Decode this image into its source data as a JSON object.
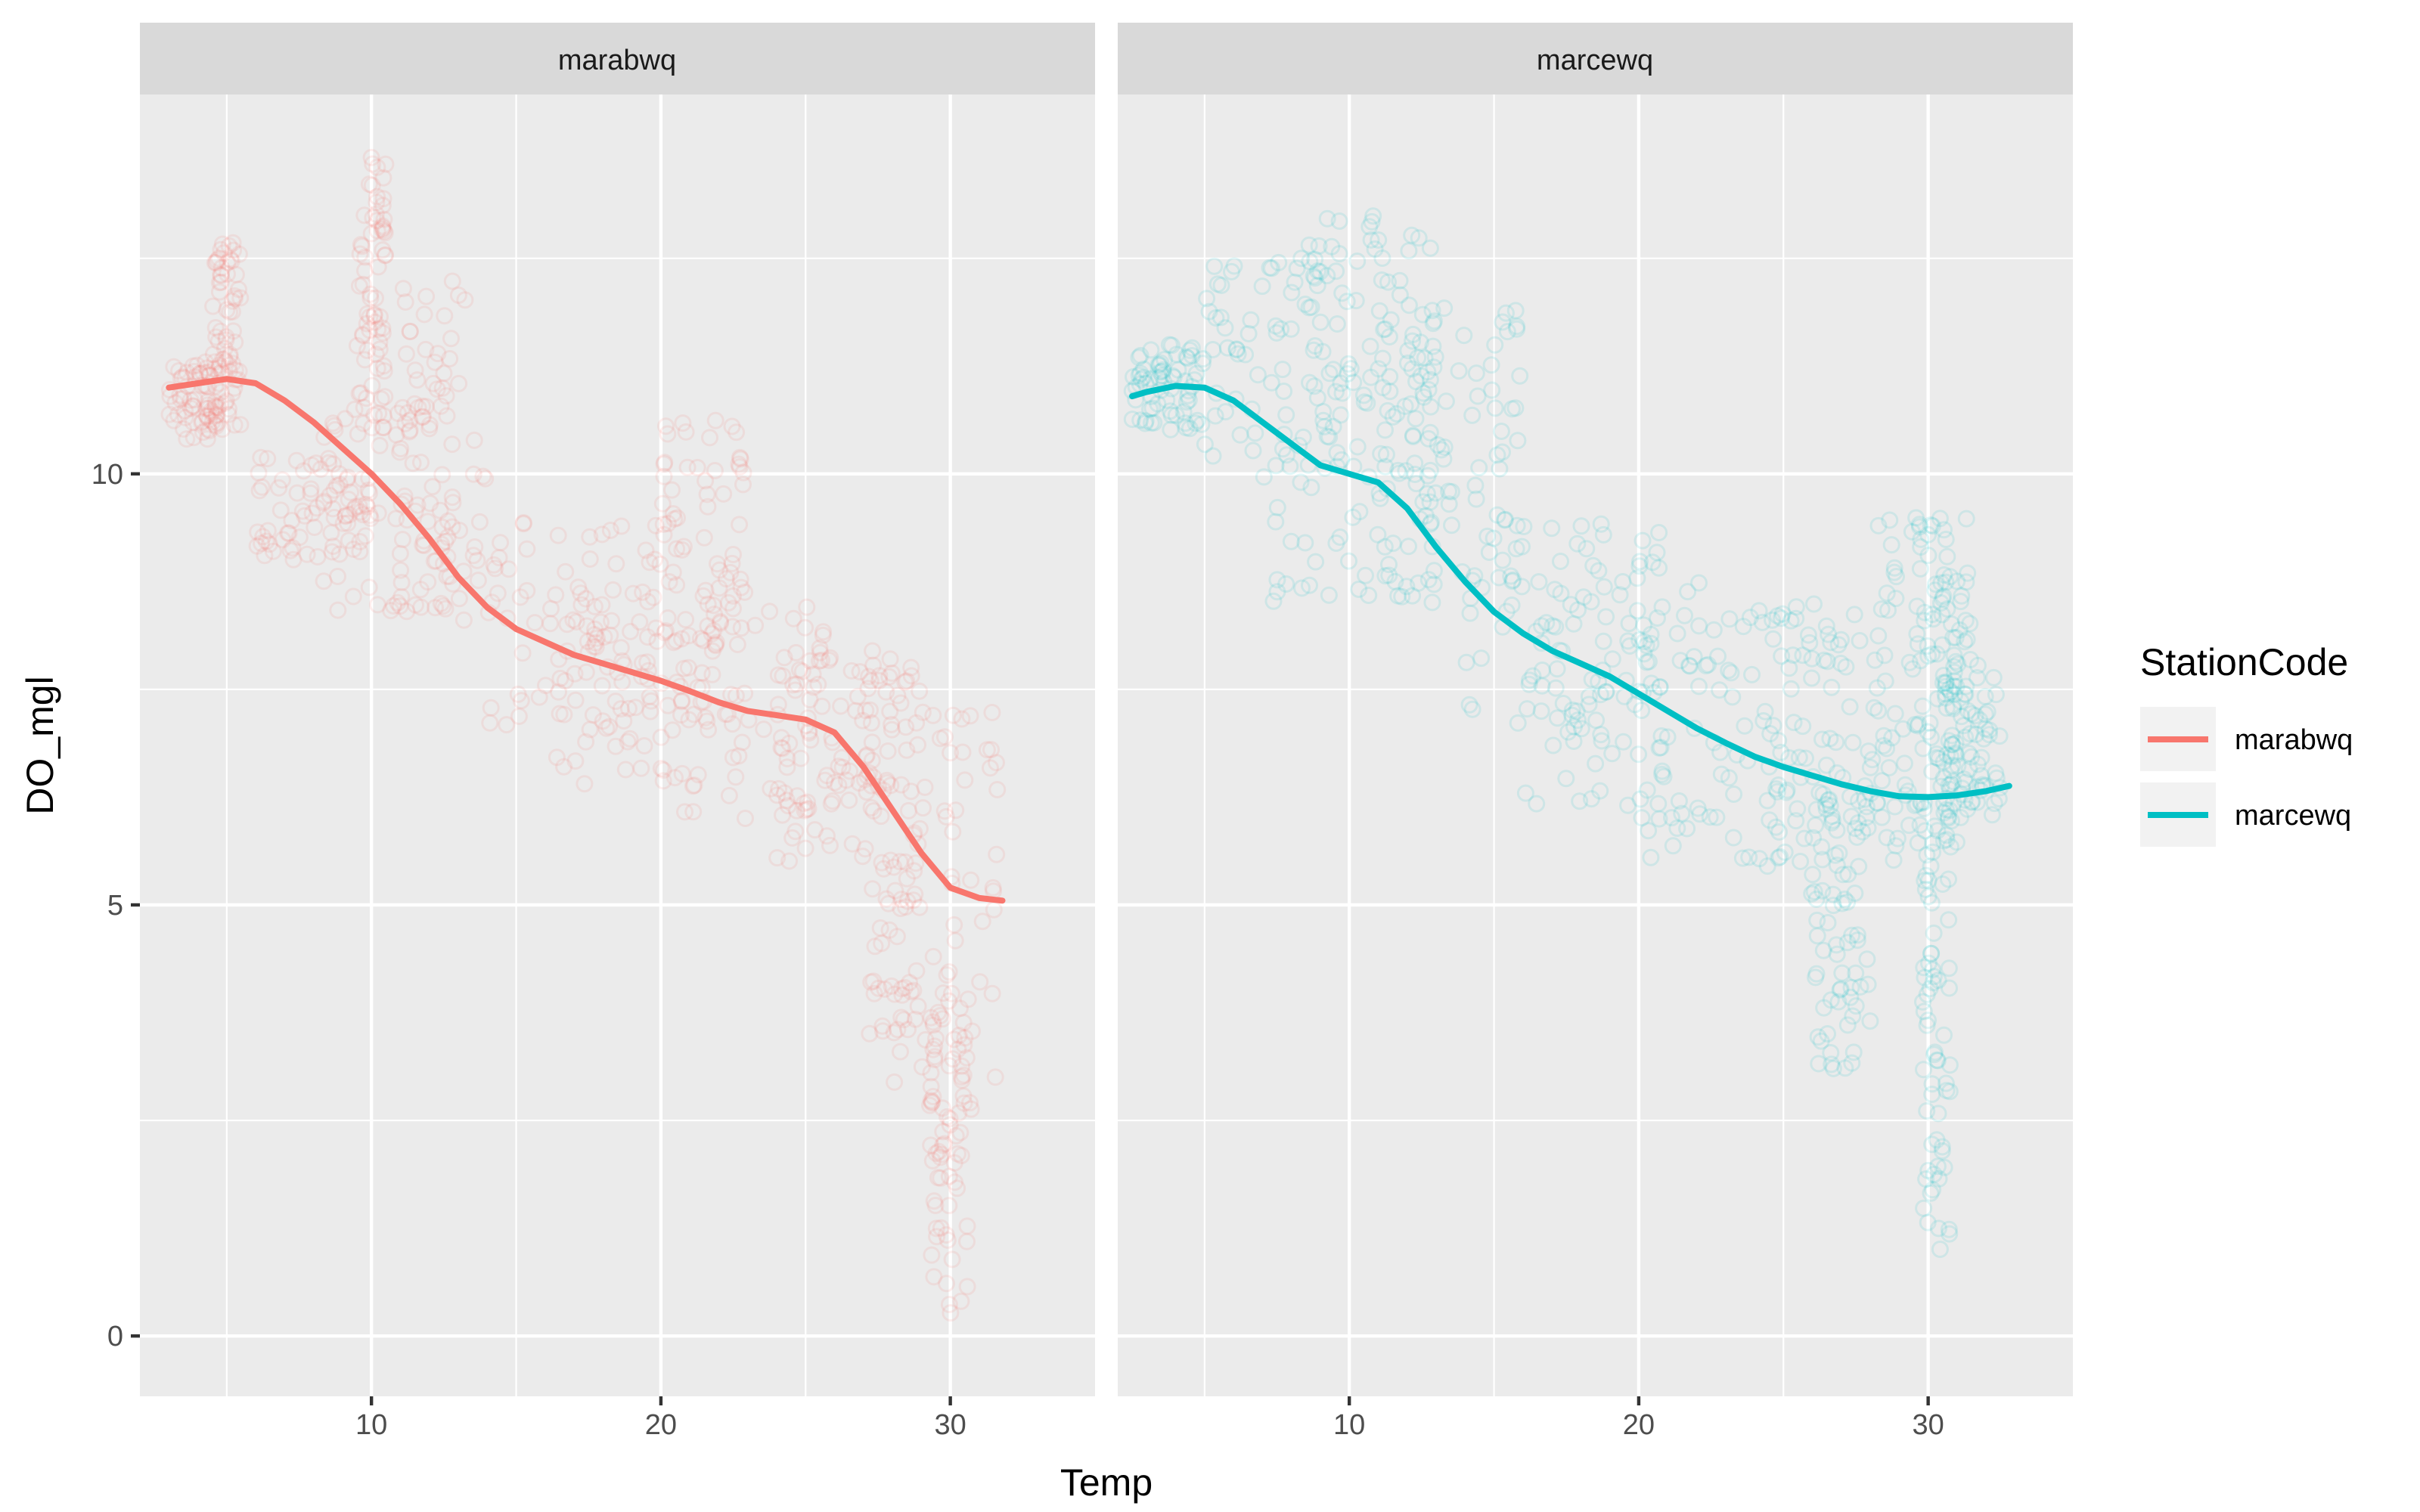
{
  "chart_data": {
    "type": "scatter",
    "xlabel": "Temp",
    "ylabel": "DO_mgl",
    "xlim": [
      2,
      35
    ],
    "ylim": [
      -0.7,
      14.4
    ],
    "x_ticks": [
      10,
      20,
      30
    ],
    "x_tick_labels": [
      "10",
      "20",
      "30"
    ],
    "y_ticks": [
      0,
      5,
      10
    ],
    "y_tick_labels": [
      "0",
      "5",
      "10"
    ],
    "grid": true,
    "legend": {
      "title": "StationCode",
      "position": "right",
      "entries": [
        {
          "label": "marabwq",
          "color": "#F8766D"
        },
        {
          "label": "marcewq",
          "color": "#00BFC4"
        }
      ]
    },
    "facets": [
      {
        "label": "marabwq",
        "color": "#F8766D",
        "smooth_x": [
          3.0,
          4.0,
          5.0,
          6.0,
          7.0,
          8.0,
          9.0,
          10.0,
          11.0,
          12.0,
          13.0,
          14.0,
          15.0,
          16.0,
          17.0,
          18.0,
          19.0,
          20.0,
          21.0,
          22.0,
          23.0,
          24.0,
          25.0,
          26.0,
          27.0,
          28.0,
          29.0,
          30.0,
          31.0,
          31.8
        ],
        "smooth_y": [
          11.0,
          11.05,
          11.1,
          11.05,
          10.85,
          10.6,
          10.3,
          10.0,
          9.65,
          9.25,
          8.8,
          8.45,
          8.2,
          8.05,
          7.9,
          7.8,
          7.7,
          7.6,
          7.48,
          7.35,
          7.25,
          7.2,
          7.15,
          7.0,
          6.6,
          6.1,
          5.6,
          5.2,
          5.08,
          5.05
        ],
        "point_clusters": [
          {
            "x": [
              3,
              5
            ],
            "y": [
              10.4,
              11.3
            ]
          },
          {
            "x": [
              4.5,
              5.5
            ],
            "y": [
              10.5,
              12.7
            ]
          },
          {
            "x": [
              6,
              10
            ],
            "y": [
              9.0,
              10.2
            ]
          },
          {
            "x": [
              8,
              13
            ],
            "y": [
              8.4,
              11.0
            ]
          },
          {
            "x": [
              9.5,
              10.5
            ],
            "y": [
              10.5,
              13.7
            ]
          },
          {
            "x": [
              11,
              14
            ],
            "y": [
              8.3,
              12.5
            ]
          },
          {
            "x": [
              14,
              20
            ],
            "y": [
              7.0,
              9.5
            ]
          },
          {
            "x": [
              16,
              22
            ],
            "y": [
              6.4,
              8.6
            ]
          },
          {
            "x": [
              20,
              23
            ],
            "y": [
              8.0,
              10.7
            ]
          },
          {
            "x": [
              20,
              26
            ],
            "y": [
              6.0,
              8.5
            ]
          },
          {
            "x": [
              24,
              28
            ],
            "y": [
              5.5,
              8.2
            ]
          },
          {
            "x": [
              27,
              29
            ],
            "y": [
              3.5,
              7.8
            ]
          },
          {
            "x": [
              28,
              31.7
            ],
            "y": [
              2.5,
              7.5
            ]
          },
          {
            "x": [
              29.3,
              30.6
            ],
            "y": [
              0.2,
              4.2
            ]
          }
        ]
      },
      {
        "label": "marcewq",
        "color": "#00BFC4",
        "smooth_x": [
          2.5,
          3.0,
          4.0,
          5.0,
          6.0,
          7.0,
          8.0,
          9.0,
          10.0,
          11.0,
          12.0,
          13.0,
          14.0,
          15.0,
          16.0,
          17.0,
          18.0,
          19.0,
          20.0,
          21.0,
          22.0,
          23.0,
          24.0,
          25.0,
          26.0,
          27.0,
          28.0,
          29.0,
          30.0,
          31.0,
          32.0,
          32.8
        ],
        "smooth_y": [
          10.9,
          10.95,
          11.02,
          11.0,
          10.85,
          10.6,
          10.35,
          10.1,
          10.0,
          9.9,
          9.6,
          9.15,
          8.75,
          8.4,
          8.15,
          7.95,
          7.8,
          7.65,
          7.45,
          7.25,
          7.05,
          6.88,
          6.72,
          6.6,
          6.5,
          6.4,
          6.32,
          6.26,
          6.25,
          6.27,
          6.32,
          6.38
        ],
        "point_clusters": [
          {
            "x": [
              2.5,
              5
            ],
            "y": [
              10.5,
              11.5
            ]
          },
          {
            "x": [
              5,
              10
            ],
            "y": [
              10.2,
              12.5
            ]
          },
          {
            "x": [
              7,
              13
            ],
            "y": [
              8.5,
              10.5
            ]
          },
          {
            "x": [
              8.5,
              13
            ],
            "y": [
              10.5,
              13.0
            ]
          },
          {
            "x": [
              11,
              16
            ],
            "y": [
              8.5,
              12.0
            ]
          },
          {
            "x": [
              14,
              21
            ],
            "y": [
              6.5,
              9.5
            ]
          },
          {
            "x": [
              16,
              23
            ],
            "y": [
              6.0,
              9.0
            ]
          },
          {
            "x": [
              20,
              27
            ],
            "y": [
              5.5,
              8.5
            ]
          },
          {
            "x": [
              24,
              29
            ],
            "y": [
              5.0,
              8.5
            ]
          },
          {
            "x": [
              26,
              28
            ],
            "y": [
              3.0,
              6.5
            ]
          },
          {
            "x": [
              28,
              31
            ],
            "y": [
              5.5,
              9.5
            ]
          },
          {
            "x": [
              29.5,
              31.5
            ],
            "y": [
              6.0,
              9.5
            ]
          },
          {
            "x": [
              29.8,
              30.8
            ],
            "y": [
              1.0,
              6.0
            ]
          },
          {
            "x": [
              30.5,
              32.5
            ],
            "y": [
              6.0,
              7.8
            ]
          }
        ]
      }
    ]
  }
}
